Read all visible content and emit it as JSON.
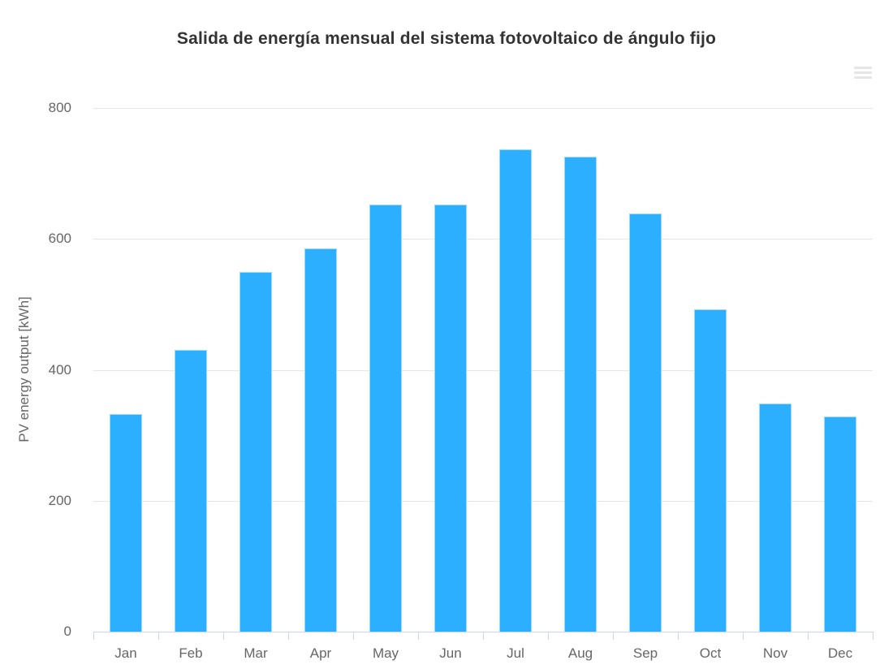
{
  "chart_data": {
    "type": "bar",
    "title": "Salida de energía mensual del sistema fotovoltaico de ángulo fijo",
    "ylabel": "PV energy output [kWh]",
    "xlabel": "",
    "categories": [
      "Jan",
      "Feb",
      "Mar",
      "Apr",
      "May",
      "Jun",
      "Jul",
      "Aug",
      "Sep",
      "Oct",
      "Nov",
      "Dec"
    ],
    "values": [
      332,
      430,
      549,
      586,
      652,
      652,
      737,
      726,
      639,
      492,
      349,
      329
    ],
    "ylim": [
      0,
      800
    ],
    "yticks": [
      0,
      200,
      400,
      600,
      800
    ],
    "grid": true,
    "legend": false,
    "layout_hints": {
      "bar_orientation": "vertical",
      "gridlines": "horizontal-light",
      "x_axis_ticks": "between-categories"
    },
    "icons": {
      "context_menu": "hamburger-menu-icon-faint"
    },
    "colors": {
      "bar": "#2caffe",
      "bar_edge": "#9bd9ff",
      "title_text": "#333333",
      "axis_label_text": "#666666",
      "gridline": "#e6e6e6",
      "axis_line": "#ccd6eb"
    }
  }
}
